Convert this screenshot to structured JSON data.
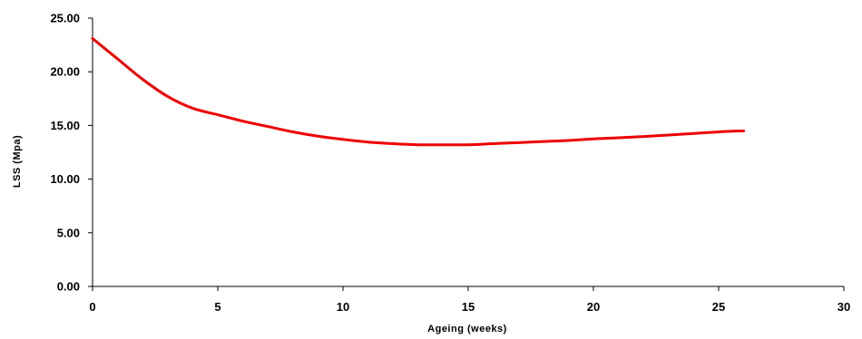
{
  "chart_data": {
    "type": "line",
    "title": "",
    "xlabel": "Ageing (weeks)",
    "ylabel": "LSS (Mpa)",
    "xlim": [
      0,
      30
    ],
    "ylim": [
      0,
      25
    ],
    "x_ticks": [
      "0",
      "5",
      "10",
      "15",
      "20",
      "25",
      "30"
    ],
    "y_ticks": [
      "0.00",
      "5.00",
      "10.00",
      "15.00",
      "20.00",
      "25.00"
    ],
    "grid": false,
    "legend": "none",
    "series": [
      {
        "color": "#ee0000",
        "x": [
          0,
          1,
          2,
          3,
          4,
          5,
          6,
          7,
          8,
          9,
          10,
          11,
          12,
          13,
          14,
          15,
          16,
          17,
          18,
          19,
          20,
          21,
          22,
          23,
          24,
          25,
          26
        ],
        "y": [
          23.1,
          21.2,
          19.3,
          17.7,
          16.6,
          16.0,
          15.4,
          14.9,
          14.4,
          14.0,
          13.7,
          13.45,
          13.3,
          13.2,
          13.2,
          13.2,
          13.3,
          13.4,
          13.5,
          13.6,
          13.75,
          13.85,
          13.97,
          14.1,
          14.25,
          14.4,
          14.5
        ]
      }
    ]
  }
}
